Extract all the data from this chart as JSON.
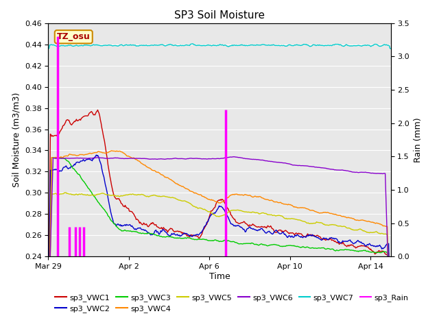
{
  "title": "SP3 Soil Moisture",
  "xlabel": "Time",
  "ylabel_left": "Soil Moisture (m3/m3)",
  "ylabel_right": "Rain (mm)",
  "ylim_left": [
    0.24,
    0.46
  ],
  "ylim_right": [
    0.0,
    3.5
  ],
  "bg_color": "#e8e8e8",
  "fig_color": "#ffffff",
  "label_box": "TZ_osu",
  "label_box_color": "#ffffcc",
  "label_box_border": "#cc8800",
  "series_colors": {
    "sp3_VWC1": "#cc0000",
    "sp3_VWC2": "#0000cc",
    "sp3_VWC3": "#00cc00",
    "sp3_VWC4": "#ff8800",
    "sp3_VWC5": "#cccc00",
    "sp3_VWC6": "#8800cc",
    "sp3_VWC7": "#00cccc",
    "sp3_Rain": "#ff00ff"
  },
  "xtick_labels": [
    "Mar 29",
    "Apr 2",
    "Apr 6",
    "Apr 10",
    "Apr 14"
  ],
  "xtick_positions": [
    0,
    4,
    8,
    12,
    16
  ],
  "yticks_left": [
    0.24,
    0.26,
    0.28,
    0.3,
    0.32,
    0.34,
    0.36,
    0.38,
    0.4,
    0.42,
    0.44,
    0.46
  ],
  "yticks_right": [
    0.0,
    0.5,
    1.0,
    1.5,
    2.0,
    2.5,
    3.0,
    3.5
  ],
  "rain_events": [
    {
      "t": 0.45,
      "val": 3.3
    },
    {
      "t": 1.05,
      "val": 0.45
    },
    {
      "t": 1.35,
      "val": 0.45
    },
    {
      "t": 1.55,
      "val": 0.45
    },
    {
      "t": 1.75,
      "val": 0.45
    },
    {
      "t": 8.8,
      "val": 2.2
    }
  ]
}
